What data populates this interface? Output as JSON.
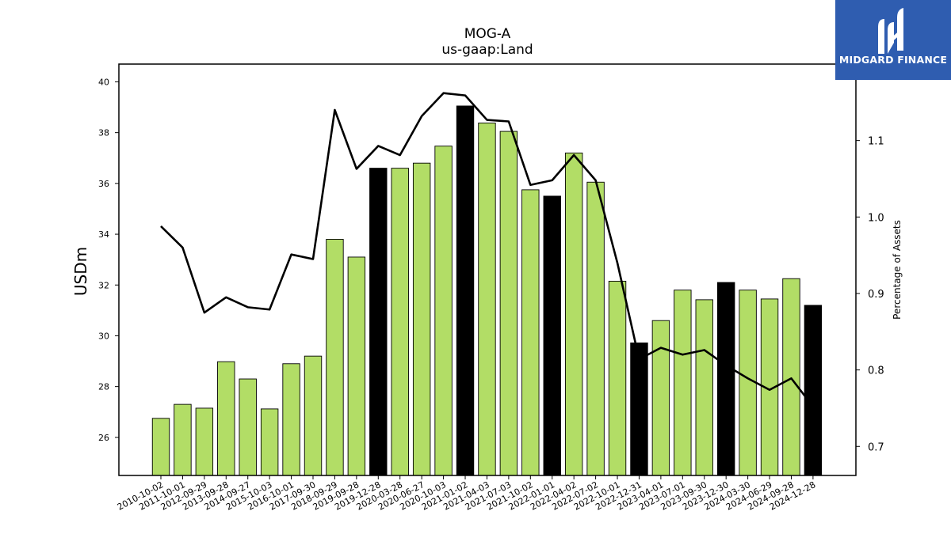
{
  "brand": {
    "name": "MIDGARD FINANCE",
    "logo_icon": "midgard-m-logo-icon",
    "bg_color": "#2f5db0"
  },
  "chart_data": {
    "type": "bar",
    "title": "MOG-A",
    "subtitle": "us-gaap:Land",
    "ylabel": "USDm",
    "y2label": "Percentage of Assets",
    "ylim": [
      24.5,
      40.7
    ],
    "y2lim": [
      0.662,
      1.2
    ],
    "yticks": [
      26,
      28,
      30,
      32,
      34,
      36,
      38,
      40
    ],
    "y2ticks": [
      0.7,
      0.8,
      0.9,
      1.0,
      1.1
    ],
    "grid": false,
    "colors": {
      "annual": "#b2dd66",
      "quarter": "#000000",
      "line": "#000000"
    },
    "categories": [
      "2010-10-02",
      "2011-10-01",
      "2012-09-29",
      "2013-09-28",
      "2014-09-27",
      "2015-10-03",
      "2016-10-01",
      "2017-09-30",
      "2018-09-29",
      "2019-09-28",
      "2019-12-28",
      "2020-03-28",
      "2020-06-27",
      "2020-10-03",
      "2021-01-02",
      "2021-04-03",
      "2021-07-03",
      "2021-10-02",
      "2022-01-01",
      "2022-04-02",
      "2022-07-02",
      "2022-10-01",
      "2022-12-31",
      "2023-04-01",
      "2023-07-01",
      "2023-09-30",
      "2023-12-30",
      "2024-03-30",
      "2024-06-29",
      "2024-09-28",
      "2024-12-28"
    ],
    "series": [
      {
        "type": "bar",
        "values": [
          26.75,
          27.3,
          27.15,
          28.98,
          28.3,
          27.12,
          28.9,
          29.2,
          33.8,
          33.1,
          36.6,
          36.6,
          36.8,
          37.47,
          39.05,
          38.38,
          38.05,
          35.75,
          35.5,
          37.2,
          36.05,
          32.15,
          29.72,
          30.6,
          31.8,
          31.42,
          32.1,
          31.8,
          31.45,
          32.25,
          31.2
        ],
        "highlight": [
          false,
          false,
          false,
          false,
          false,
          false,
          false,
          false,
          false,
          false,
          true,
          false,
          false,
          false,
          true,
          false,
          false,
          false,
          true,
          false,
          false,
          false,
          true,
          false,
          false,
          false,
          true,
          false,
          false,
          false,
          true
        ]
      },
      {
        "type": "line",
        "axis": "right",
        "values": [
          0.988,
          0.96,
          0.875,
          0.895,
          0.882,
          0.879,
          0.951,
          0.945,
          1.14,
          1.063,
          1.093,
          1.081,
          1.132,
          1.162,
          1.159,
          1.127,
          1.125,
          1.042,
          1.048,
          1.081,
          1.048,
          0.94,
          0.814,
          0.829,
          0.82,
          0.826,
          0.806,
          0.789,
          0.774,
          0.789,
          0.752
        ]
      }
    ]
  }
}
